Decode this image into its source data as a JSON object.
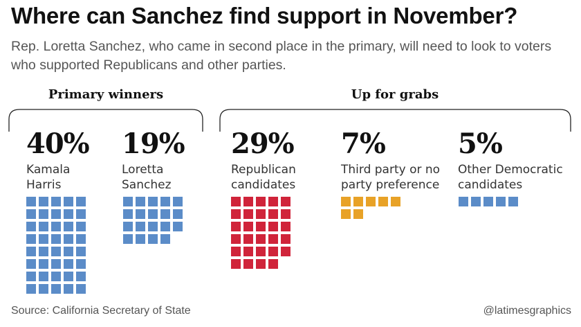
{
  "title": "Where can Sanchez find support in November?",
  "subtitle": "Rep. Loretta Sanchez, who came in second place in the primary, will need to look to voters who supported Republicans and other parties.",
  "groups": [
    {
      "label": "Primary winners"
    },
    {
      "label": "Up for grabs"
    }
  ],
  "colors": {
    "democratic": "#5b8cc8",
    "republican": "#d0243a",
    "third_party": "#e8a227"
  },
  "chart_data": {
    "type": "waffle",
    "unit": "each square = 1%",
    "series": [
      {
        "pct_label": "40%",
        "value": 40,
        "label": "Kamala\nHarris",
        "color": "#5b8cc8",
        "group": "Primary winners"
      },
      {
        "pct_label": "19%",
        "value": 19,
        "label": "Loretta\nSanchez",
        "color": "#5b8cc8",
        "group": "Primary winners"
      },
      {
        "pct_label": "29%",
        "value": 29,
        "label": "Republican\ncandidates",
        "color": "#d0243a",
        "group": "Up for grabs"
      },
      {
        "pct_label": "7%",
        "value": 7,
        "label": "Third party or no\nparty preference",
        "color": "#e8a227",
        "group": "Up for grabs"
      },
      {
        "pct_label": "5%",
        "value": 5,
        "label": "Other Democratic\ncandidates",
        "color": "#5b8cc8",
        "group": "Up for grabs"
      }
    ]
  },
  "footer": {
    "source": "Source: California Secretary of State",
    "credit": "@latimesgraphics"
  }
}
